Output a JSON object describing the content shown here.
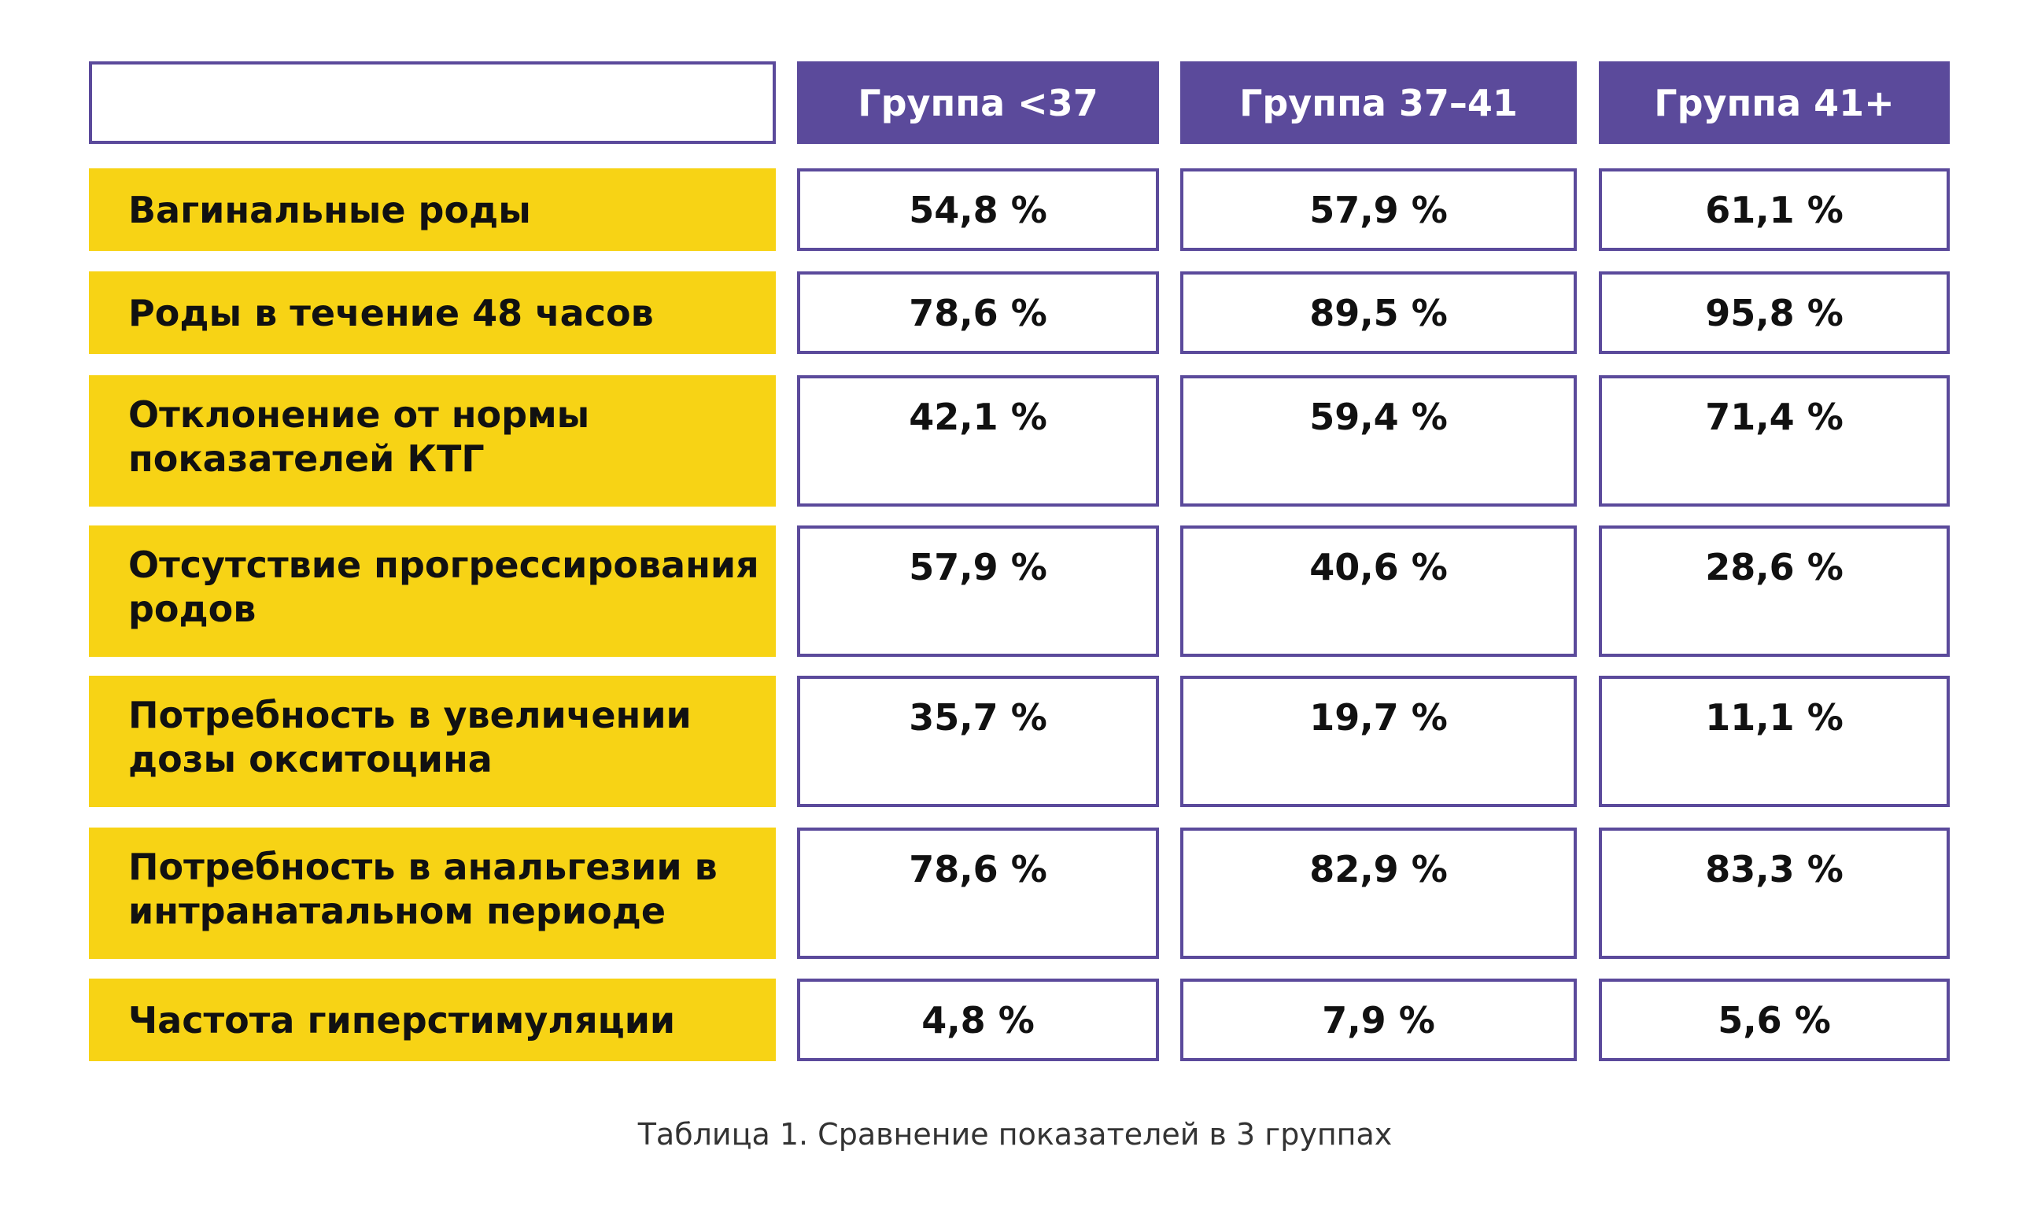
{
  "chart_data": {
    "type": "table",
    "columns": [
      "Группа <37",
      "Группа 37–41",
      "Группа 41+"
    ],
    "rows": [
      {
        "label": "Вагинальные роды",
        "values": [
          "54,8 %",
          "57,9 %",
          "61,1 %"
        ]
      },
      {
        "label": "Роды в течение 48 часов",
        "values": [
          "78,6 %",
          "89,5 %",
          "95,8 %"
        ]
      },
      {
        "label": "Отклонение от нормы показателей КТГ",
        "values": [
          "42,1 %",
          "59,4 %",
          "71,4 %"
        ]
      },
      {
        "label": "Отсутствие прогрессирования родов",
        "values": [
          "57,9 %",
          "40,6 %",
          "28,6 %"
        ]
      },
      {
        "label": "Потребность в увеличении дозы окситоцина",
        "values": [
          "35,7 %",
          "19,7 %",
          "11,1 %"
        ]
      },
      {
        "label": "Потребность в анальгезии в интранатальном периоде",
        "values": [
          "78,6 %",
          "82,9 %",
          "83,3 %"
        ]
      },
      {
        "label": "Частота гиперстимуляции",
        "values": [
          "4,8 %",
          "7,9 %",
          "5,6 %"
        ]
      }
    ]
  },
  "caption": "Таблица 1. Сравнение показателей в 3 группах",
  "colors": {
    "header_bg": "#5b4a9b",
    "label_bg": "#f7d315",
    "border": "#5b4a9b"
  }
}
